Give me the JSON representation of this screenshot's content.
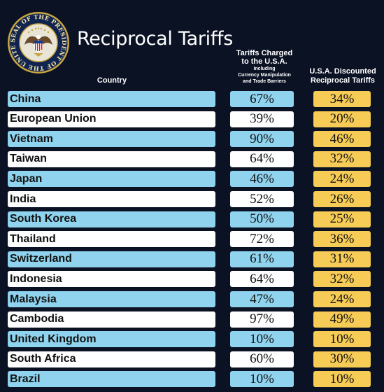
{
  "header": {
    "seal_text": "SEAL OF THE PRESIDENT OF THE UNITED STATES",
    "title": "Reciprocal Tariffs",
    "col_country": "Country",
    "col_charged_line1": "Tariffs Charged",
    "col_charged_line2": "to the U.S.A.",
    "col_charged_sub1": "Including",
    "col_charged_sub2": "Currency Manipulation",
    "col_charged_sub3": "and Trade Barriers",
    "col_disc_line1": "U.S.A. Discounted",
    "col_disc_line2": "Reciprocal Tariffs"
  },
  "colors": {
    "background": "#0b1224",
    "row_blue": "#8fd3ee",
    "row_white": "#ffffff",
    "discount_yellow": "#f6cb56"
  },
  "rows": [
    {
      "country": "China",
      "charged": "67%",
      "discounted": "34%"
    },
    {
      "country": "European Union",
      "charged": "39%",
      "discounted": "20%"
    },
    {
      "country": "Vietnam",
      "charged": "90%",
      "discounted": "46%"
    },
    {
      "country": "Taiwan",
      "charged": "64%",
      "discounted": "32%"
    },
    {
      "country": "Japan",
      "charged": "46%",
      "discounted": "24%"
    },
    {
      "country": "India",
      "charged": "52%",
      "discounted": "26%"
    },
    {
      "country": "South Korea",
      "charged": "50%",
      "discounted": "25%"
    },
    {
      "country": "Thailand",
      "charged": "72%",
      "discounted": "36%"
    },
    {
      "country": "Switzerland",
      "charged": "61%",
      "discounted": "31%"
    },
    {
      "country": "Indonesia",
      "charged": "64%",
      "discounted": "32%"
    },
    {
      "country": "Malaysia",
      "charged": "47%",
      "discounted": "24%"
    },
    {
      "country": "Cambodia",
      "charged": "97%",
      "discounted": "49%"
    },
    {
      "country": "United Kingdom",
      "charged": "10%",
      "discounted": "10%"
    },
    {
      "country": "South Africa",
      "charged": "60%",
      "discounted": "30%"
    },
    {
      "country": "Brazil",
      "charged": "10%",
      "discounted": "10%"
    }
  ]
}
